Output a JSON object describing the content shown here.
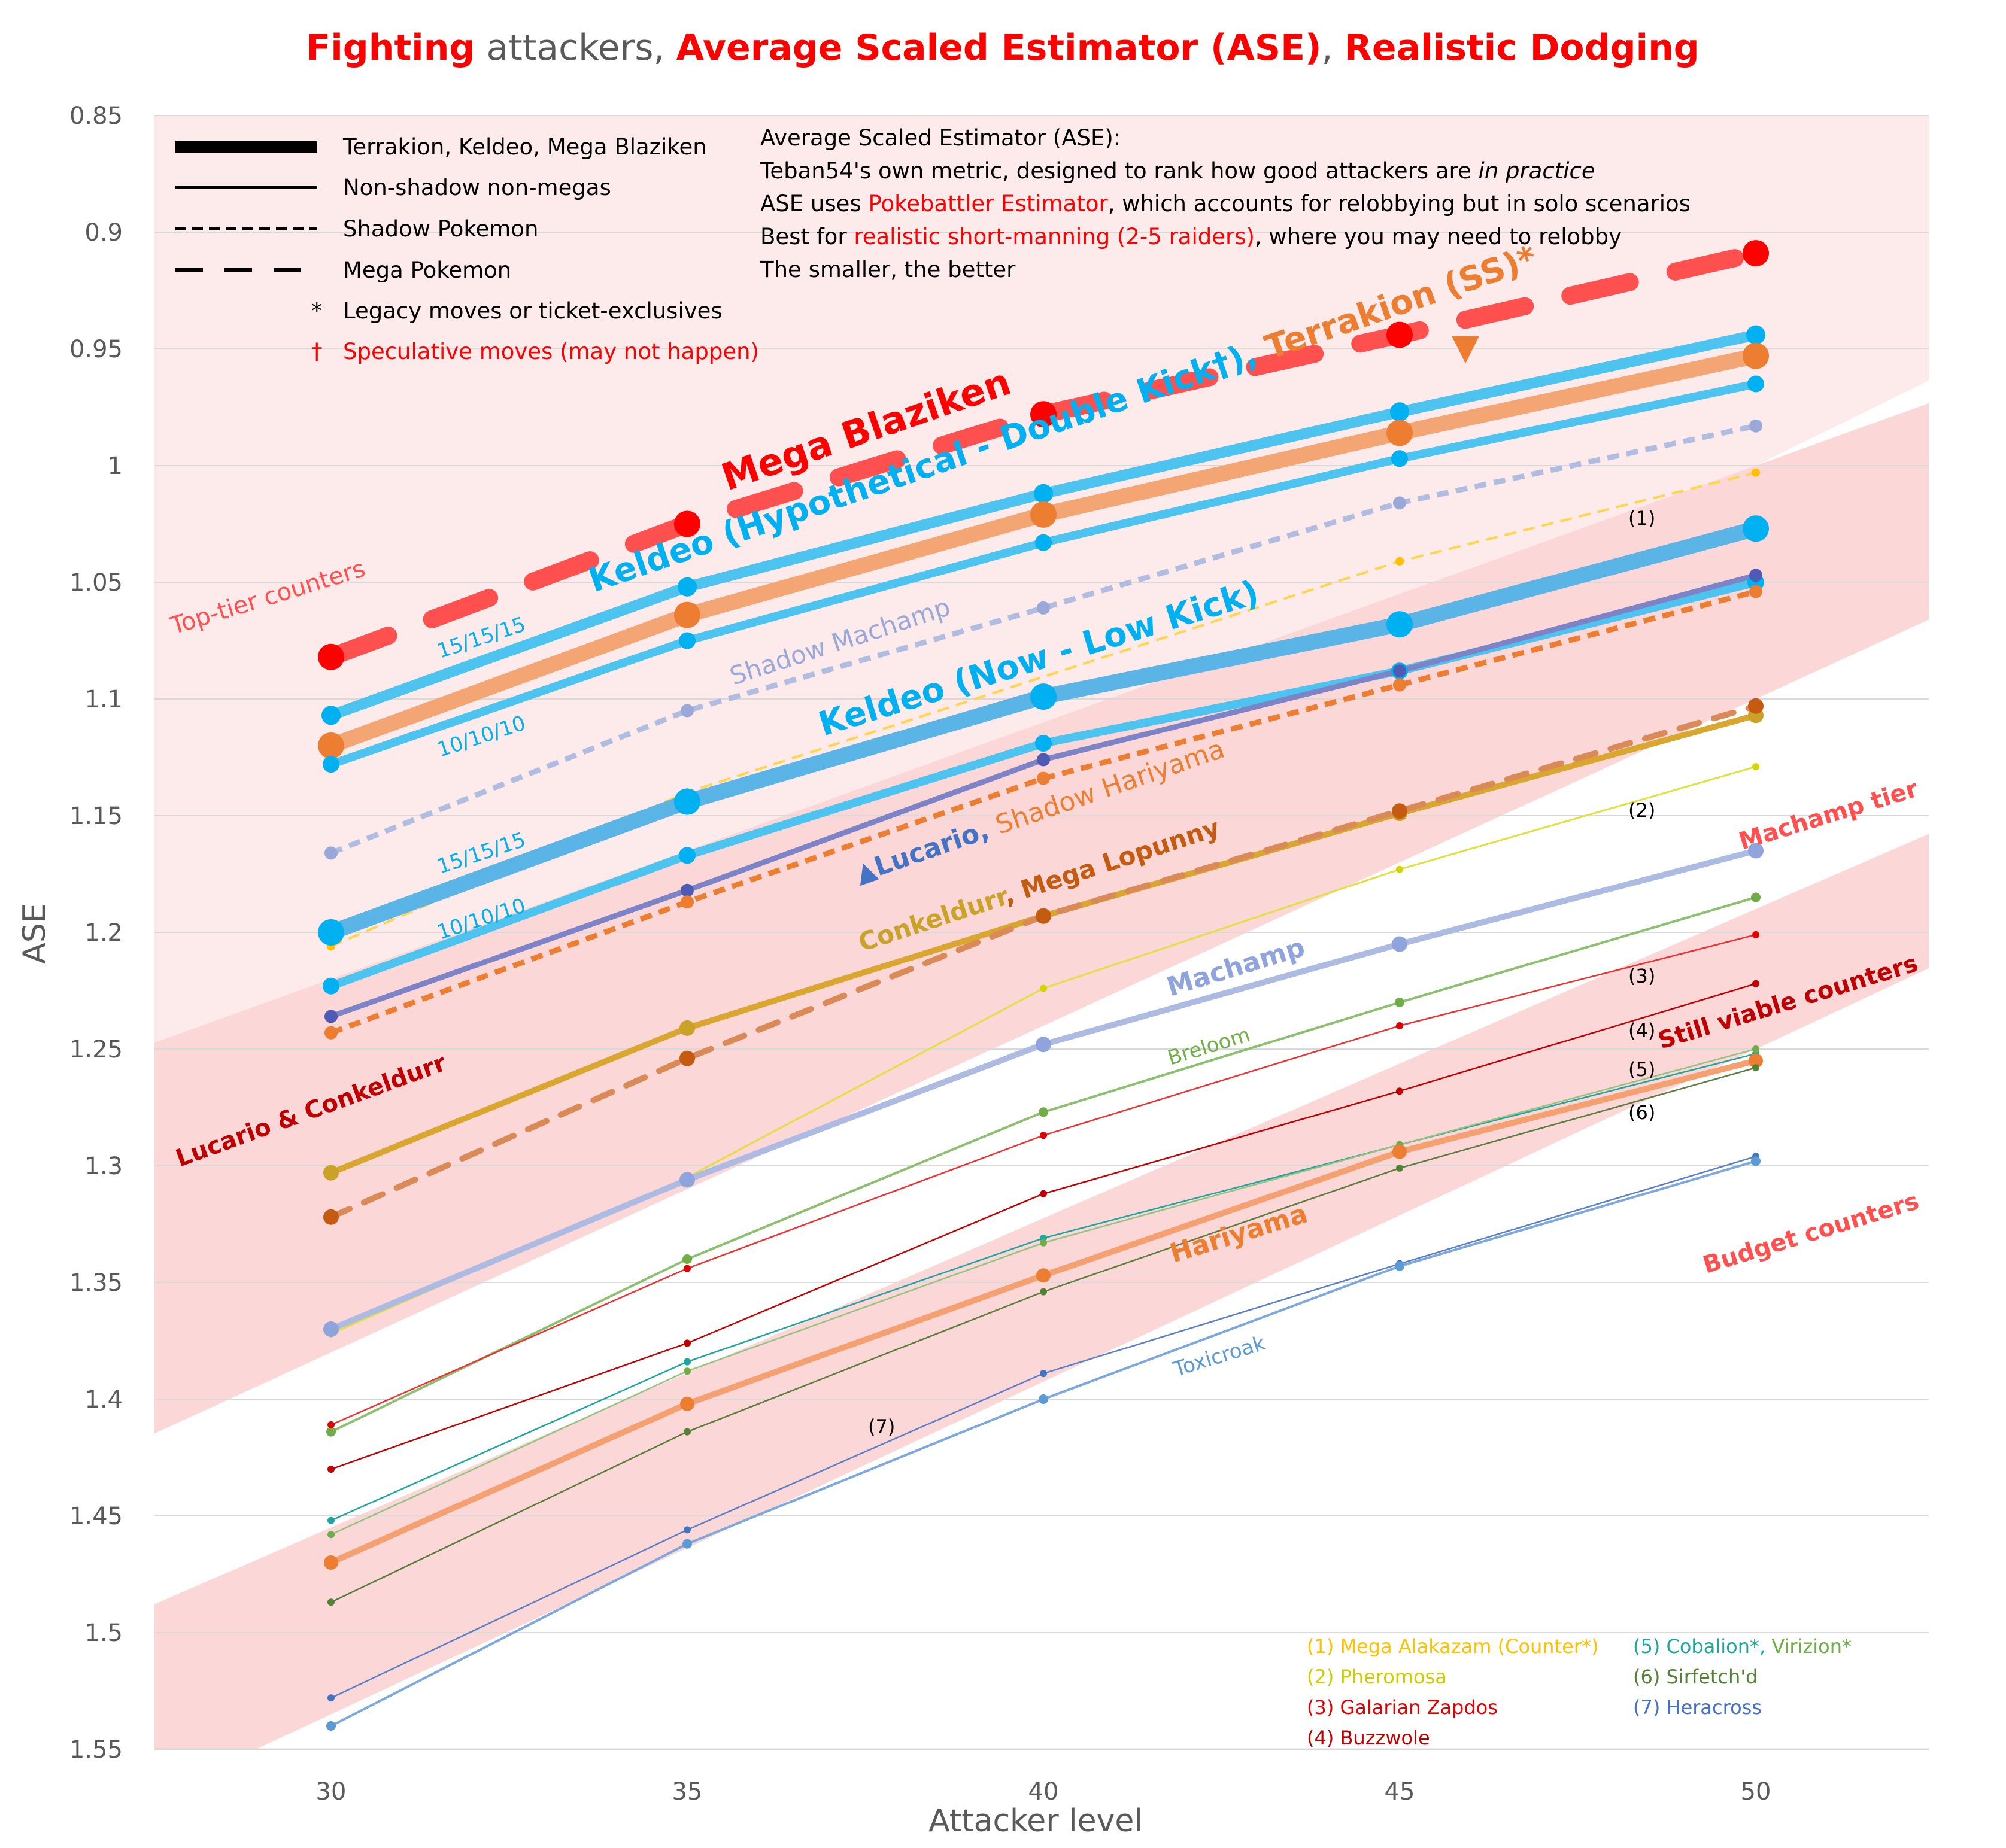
{
  "title": {
    "part1": "Fighting",
    "part2": " attackers, ",
    "part3": "Average Scaled Estimator (ASE)",
    "part4": ", ",
    "part5": "Realistic Dodging",
    "red": "#ff0000",
    "gray": "#595959"
  },
  "chart_data": {
    "type": "line",
    "title": "Fighting attackers, Average Scaled Estimator (ASE), Realistic Dodging",
    "xlabel": "Attacker level",
    "ylabel": "ASE",
    "x": [
      30,
      35,
      40,
      45,
      50
    ],
    "xlim": [
      27.5,
      52.5
    ],
    "ylim": [
      0.85,
      1.55
    ],
    "y_inverted": true,
    "yticks": [
      "0.85",
      "0.9",
      "0.95",
      "1",
      "1.05",
      "1.1",
      "1.15",
      "1.2",
      "1.25",
      "1.3",
      "1.35",
      "1.4",
      "1.45",
      "1.5",
      "1.55"
    ],
    "yticks_values": [
      0.85,
      0.9,
      0.95,
      1.0,
      1.05,
      1.1,
      1.15,
      1.2,
      1.25,
      1.3,
      1.35,
      1.4,
      1.45,
      1.5,
      1.55
    ],
    "xticks": [
      "30",
      "35",
      "40",
      "45",
      "50"
    ],
    "grid": true,
    "bands": [
      {
        "name": "top-tier",
        "y30": [
          0.85,
          1.3
        ],
        "y50": [
          0.85,
          1.0
        ],
        "color": "#fdeaea"
      },
      {
        "name": "machamp-tier",
        "y30": [
          1.22,
          1.38
        ],
        "y50": [
          1.0,
          1.1
        ],
        "color": "#fbd7d7"
      },
      {
        "name": "still-viable",
        "y30": [
          1.455,
          1.535
        ],
        "y50": [
          1.19,
          1.25
        ],
        "color": "#fbd7d7"
      }
    ],
    "series": [
      {
        "name": "Mega Blaziken",
        "values": [
          1.082,
          1.025,
          0.978,
          0.944,
          0.909
        ],
        "color": "#ff5050",
        "style": "dash-long",
        "width": 30,
        "marker_color": "#ff0000",
        "marker": 22
      },
      {
        "name": "Keldeo (Hypothetical - Double Kick) 15/15/15",
        "values": [
          1.107,
          1.052,
          1.012,
          0.977,
          0.944
        ],
        "color": "#4dc3f0",
        "style": "solid",
        "width": 18,
        "marker_color": "#00b0f0",
        "marker": 16
      },
      {
        "name": "Terrakion (SS)",
        "values": [
          1.12,
          1.064,
          1.021,
          0.986,
          0.953
        ],
        "color": "#f4a574",
        "style": "solid",
        "width": 26,
        "marker_color": "#ed7d31",
        "marker": 22
      },
      {
        "name": "Keldeo (Hypothetical - Double Kick) 10/10/10",
        "values": [
          1.128,
          1.075,
          1.033,
          0.997,
          0.965
        ],
        "color": "#4dc3f0",
        "style": "solid",
        "width": 14,
        "marker_color": "#00b0f0",
        "marker": 14
      },
      {
        "name": "Shadow Machamp",
        "values": [
          1.166,
          1.105,
          1.061,
          1.016,
          0.983
        ],
        "color": "#b0bde0",
        "style": "dash-short",
        "width": 9,
        "marker_color": "#9aa8d8",
        "marker": 11
      },
      {
        "name": "(1) Mega Alakazam",
        "values": [
          1.206,
          1.14,
          null,
          1.041,
          1.003
        ],
        "color": "#ffd54a",
        "style": "dash-medium",
        "width": 4,
        "marker_color": "#ffc000",
        "marker": 7
      },
      {
        "name": "Keldeo (Now - Low Kick) 15/15/15",
        "values": [
          1.2,
          1.144,
          1.099,
          1.068,
          1.027
        ],
        "color": "#5ab4e6",
        "style": "solid",
        "width": 26,
        "marker_color": "#00b0f0",
        "marker": 22
      },
      {
        "name": "Keldeo (Now - Low Kick) 10/10/10",
        "values": [
          1.223,
          1.167,
          1.119,
          1.088,
          1.05
        ],
        "color": "#4dc3f0",
        "style": "solid",
        "width": 14,
        "marker_color": "#00b0f0",
        "marker": 14
      },
      {
        "name": "Lucario",
        "values": [
          1.236,
          1.182,
          1.126,
          1.088,
          1.047
        ],
        "color": "#7d83c7",
        "style": "solid",
        "width": 9,
        "marker_color": "#4e5bb5",
        "marker": 11
      },
      {
        "name": "Shadow Hariyama",
        "values": [
          1.243,
          1.187,
          1.134,
          1.094,
          1.054
        ],
        "color": "#ed7d31",
        "style": "dash-short",
        "width": 9,
        "marker_color": "#ed7d31",
        "marker": 11
      },
      {
        "name": "Conkeldurr",
        "values": [
          1.303,
          1.241,
          1.193,
          1.149,
          1.107
        ],
        "color": "#d9a730",
        "style": "solid",
        "width": 10,
        "marker_color": "#c9a227",
        "marker": 13
      },
      {
        "name": "Mega Lopunny",
        "values": [
          1.322,
          1.254,
          1.193,
          1.148,
          1.103
        ],
        "color": "#d98a56",
        "style": "dash-long",
        "width": 10,
        "marker_color": "#c55a11",
        "marker": 13
      },
      {
        "name": "(2) Pheromosa",
        "values": [
          1.372,
          1.305,
          1.224,
          1.173,
          1.129
        ],
        "color": "#e0e040",
        "style": "solid",
        "width": 3,
        "marker_color": "#d4d400",
        "marker": 6
      },
      {
        "name": "Machamp",
        "values": [
          1.37,
          1.306,
          1.248,
          1.205,
          1.165
        ],
        "color": "#adbbe3",
        "style": "solid",
        "width": 10,
        "marker_color": "#8fa4dd",
        "marker": 13
      },
      {
        "name": "Breloom",
        "values": [
          1.414,
          1.34,
          1.277,
          1.23,
          1.185
        ],
        "color": "#8cbf6f",
        "style": "solid",
        "width": 4,
        "marker_color": "#70ad47",
        "marker": 8
      },
      {
        "name": "(3) Galarian Zapdos",
        "values": [
          1.411,
          1.344,
          1.287,
          1.24,
          1.201
        ],
        "color": "#ee3030",
        "style": "solid",
        "width": 2.5,
        "marker_color": "#e00000",
        "marker": 6
      },
      {
        "name": "(4) Buzzwole",
        "values": [
          1.43,
          1.376,
          1.312,
          1.268,
          1.222
        ],
        "color": "#c00000",
        "style": "solid",
        "width": 2.5,
        "marker_color": "#c00000",
        "marker": 6
      },
      {
        "name": "(5) Cobalion",
        "values": [
          1.452,
          1.384,
          1.331,
          1.291,
          1.252
        ],
        "color": "#1fa5a0",
        "style": "solid",
        "width": 2.5,
        "marker_color": "#1fa5a0",
        "marker": 6
      },
      {
        "name": "(5) Virizion",
        "values": [
          1.458,
          1.388,
          1.333,
          1.291,
          1.25
        ],
        "color": "#93c47d",
        "style": "solid",
        "width": 2.5,
        "marker_color": "#70ad47",
        "marker": 6
      },
      {
        "name": "Hariyama",
        "values": [
          1.47,
          1.402,
          1.347,
          1.294,
          1.255
        ],
        "color": "#f4a070",
        "style": "solid",
        "width": 10,
        "marker_color": "#ed7d31",
        "marker": 12
      },
      {
        "name": "(6) Sirfetch'd",
        "values": [
          1.487,
          1.414,
          1.354,
          1.301,
          1.258
        ],
        "color": "#5a7d3b",
        "style": "solid",
        "width": 2.5,
        "marker_color": "#538135",
        "marker": 6
      },
      {
        "name": "(7) Heracross",
        "values": [
          1.528,
          1.456,
          1.389,
          1.342,
          1.296
        ],
        "color": "#5b7fc7",
        "style": "solid",
        "width": 2.5,
        "marker_color": "#4472c4",
        "marker": 6
      },
      {
        "name": "Toxicroak",
        "values": [
          1.54,
          1.462,
          1.4,
          1.343,
          1.298
        ],
        "color": "#7da8dd",
        "style": "solid",
        "width": 4,
        "marker_color": "#5b9bd5",
        "marker": 8
      }
    ]
  },
  "labels": {
    "top_tier": "Top-tier counters",
    "mega_blaziken": "Mega Blaziken",
    "keldeo_hyp_a": "Keldeo (Hypothetical",
    "keldeo_hyp_b": " - ",
    "keldeo_hyp_c": "Double Kick†), ",
    "terrakion": "Terrakion (SS)*",
    "shadow_machamp": "Shadow Machamp",
    "keldeo_now": "Keldeo (Now - Low Kick)",
    "ivs_15_a": "15/15/15",
    "ivs_10_a": "10/10/10",
    "ivs_15_b": "15/15/15",
    "ivs_10_b": "10/10/10",
    "lucario_arrow": "▲",
    "lucario": "Lucario",
    "lucario_comma": ", ",
    "shadow_hariyama": "Shadow Hariyama",
    "conkeldurr": "Conkeldurr",
    "conk_comma": ", ",
    "mega_lopunny": "Mega Lopunny",
    "machamp": "Machamp",
    "breloom": "Breloom",
    "hariyama": "Hariyama",
    "toxicroak": "Toxicroak",
    "machamp_tier": "Machamp tier",
    "lucario_conkeldurr": "Lucario & Conkeldurr",
    "still_viable": "Still viable counters",
    "budget": "Budget counters",
    "terrakion_arrow": "▼",
    "n1": "(1)",
    "n2": "(2)",
    "n3": "(3)",
    "n4": "(4)",
    "n5": "(5)",
    "n6": "(6)",
    "n7": "(7)"
  },
  "legend": {
    "items": [
      {
        "label": "Terrakion, Keldeo, Mega Blaziken"
      },
      {
        "label": "Non-shadow non-megas"
      },
      {
        "label": "Shadow Pokemon"
      },
      {
        "label": "Mega Pokemon"
      },
      {
        "label": "Legacy moves or ticket-exclusives",
        "symbol": "*"
      },
      {
        "label": "Speculative moves (may not happen)",
        "symbol": "†"
      }
    ]
  },
  "info": {
    "line1": "Average Scaled Estimator (ASE):",
    "line2_a": "Teban54's own metric, designed to rank how good attackers are ",
    "line2_b": "in practice",
    "line3_a": "ASE uses ",
    "line3_b": "Pokebattler Estimator",
    "line3_c": ", which accounts for relobbying but in solo scenarios",
    "line4_a": "Best for ",
    "line4_b": "realistic short-manning (2-5 raiders)",
    "line4_c": ", where you may need to relobby",
    "line5": "The smaller, the better"
  },
  "key": {
    "k1": "(1) Mega Alakazam (Counter*)",
    "k2": "(2) Pheromosa",
    "k3": "(3) Galarian Zapdos",
    "k4": "(4) Buzzwole",
    "k5a": "(5) Cobalion*",
    "k5b": ", ",
    "k5c": "Virizion*",
    "k6": "(6) Sirfetch'd",
    "k7": "(7) Heracross"
  }
}
